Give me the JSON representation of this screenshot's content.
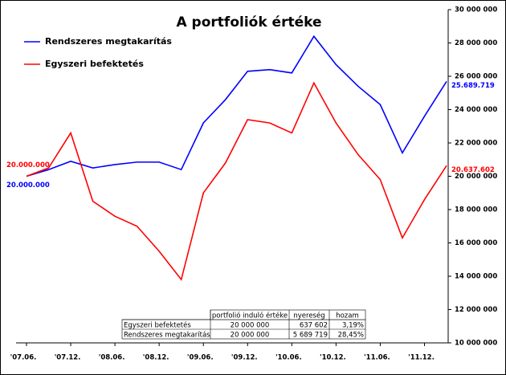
{
  "chart_data": {
    "type": "line",
    "title": "A portfoliók értéke",
    "categories": [
      "'07.06.",
      null,
      "'07.12.",
      null,
      "'08.06.",
      null,
      "'08.12.",
      null,
      "'09.06.",
      null,
      "'09.12.",
      null,
      "'10.06.",
      null,
      "'10.12.",
      null,
      "'11.06.",
      null,
      "'11.12.",
      null
    ],
    "series": [
      {
        "name": "Rendszeres megtakarítás",
        "color": "#0000ff",
        "values": [
          20000000,
          20400000,
          20900000,
          20500000,
          20700000,
          20850000,
          20850000,
          20400000,
          23200000,
          24600000,
          26300000,
          26400000,
          26200000,
          28400000,
          26700000,
          25400000,
          24300000,
          21400000,
          23600000,
          25689719
        ],
        "value_labels": [
          "20.000.000",
          null,
          null,
          null,
          null,
          null,
          null,
          null,
          null,
          null,
          null,
          null,
          null,
          null,
          null,
          null,
          null,
          null,
          null,
          "25.689.719"
        ]
      },
      {
        "name": "Egyszeri befektetés",
        "color": "#ff0000",
        "values": [
          20000000,
          20500000,
          22600000,
          18500000,
          17600000,
          17000000,
          15500000,
          13800000,
          19000000,
          20800000,
          23400000,
          23200000,
          22600000,
          25600000,
          23200000,
          21300000,
          19800000,
          16300000,
          18600000,
          20637602
        ],
        "value_labels": [
          "20.000.000",
          null,
          null,
          null,
          null,
          null,
          null,
          null,
          null,
          null,
          null,
          null,
          null,
          null,
          null,
          null,
          null,
          null,
          null,
          "20.637.602"
        ]
      }
    ],
    "ylim": [
      10000000,
      30000000
    ],
    "yticks": [
      {
        "value": 10000000,
        "label": "10 000 000"
      },
      {
        "value": 12000000,
        "label": "12 000 000"
      },
      {
        "value": 14000000,
        "label": "14 000 000"
      },
      {
        "value": 16000000,
        "label": "16 000 000"
      },
      {
        "value": 18000000,
        "label": "18 000 000"
      },
      {
        "value": 20000000,
        "label": "20 000 000"
      },
      {
        "value": 22000000,
        "label": "22 000 000"
      },
      {
        "value": 24000000,
        "label": "24 000 000"
      },
      {
        "value": 26000000,
        "label": "26 000 000"
      },
      {
        "value": 28000000,
        "label": "28 000 000"
      },
      {
        "value": 30000000,
        "label": "30 000 000"
      }
    ],
    "y_axis_side": "right",
    "legend": "upper-left",
    "table": {
      "columns": [
        "portfolió induló értéke",
        "nyereség",
        "hozam"
      ],
      "rows": [
        [
          "Egyszeri befektetés",
          "20 000 000",
          "637 602",
          "3,19%"
        ],
        [
          "Rendszeres megtakarítás",
          "20 000 000",
          "5 689 719",
          "28,45%"
        ]
      ]
    }
  }
}
